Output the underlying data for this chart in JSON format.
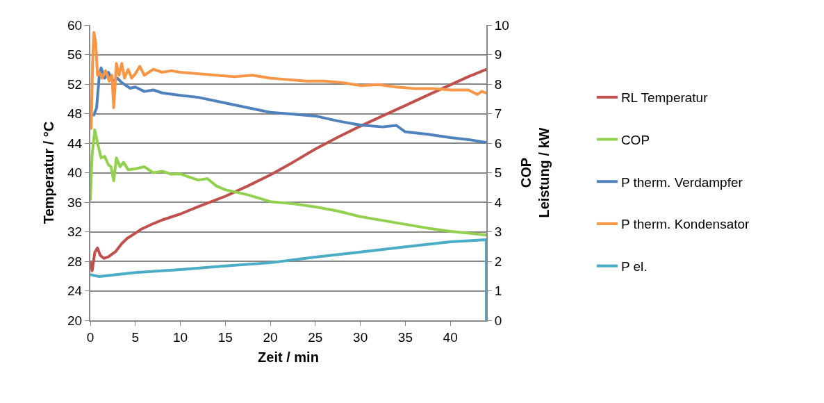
{
  "chart_data": {
    "type": "line",
    "xlabel": "Zeit / min",
    "ylabel": "Temperatur / °C",
    "y2label": "COP\nLeistung / kW",
    "xlim": [
      0,
      44
    ],
    "xticks": [
      0,
      5,
      10,
      15,
      20,
      25,
      30,
      35,
      40
    ],
    "ylim": [
      20,
      60
    ],
    "yticks": [
      20,
      24,
      28,
      32,
      36,
      40,
      44,
      48,
      52,
      56,
      60
    ],
    "y2lim": [
      0,
      10
    ],
    "y2ticks": [
      0,
      1,
      2,
      3,
      4,
      5,
      6,
      7,
      8,
      9,
      10
    ],
    "grid": "y",
    "legend": "right",
    "series": [
      {
        "name": "RL Temperatur",
        "color": "#c0504d",
        "x": [
          0,
          0.2,
          0.5,
          0.8,
          1.1,
          1.5,
          2,
          2.8,
          3.5,
          4.1,
          5,
          5.6,
          7,
          8,
          10,
          12,
          15,
          17.5,
          20,
          22.5,
          25,
          27.5,
          30,
          32.5,
          35,
          37.5,
          40,
          42,
          44
        ],
        "values": [
          27.9,
          26.7,
          29.2,
          29.8,
          28.8,
          28.4,
          28.6,
          29.3,
          30.4,
          31.1,
          31.8,
          32.3,
          33.1,
          33.6,
          34.4,
          35.4,
          36.8,
          38.2,
          39.7,
          41.4,
          43.2,
          44.8,
          46.3,
          47.7,
          49.1,
          50.5,
          51.9,
          53,
          54
        ]
      },
      {
        "name": "COP",
        "color": "#92d050",
        "axis": "y2",
        "x": [
          0,
          0.2,
          0.5,
          0.8,
          1.2,
          1.6,
          2,
          2.3,
          2.6,
          2.9,
          3.3,
          3.7,
          4.2,
          5,
          6,
          7,
          8,
          9,
          10,
          11,
          12,
          13,
          14,
          15,
          17.5,
          20,
          22.5,
          25,
          27.5,
          30,
          32.5,
          35,
          37.5,
          40,
          42,
          44
        ],
        "values": [
          4.09,
          5.6,
          6.45,
          6,
          5.5,
          5.55,
          5.27,
          5.2,
          4.73,
          5.5,
          5.2,
          5.35,
          5.1,
          5.13,
          5.2,
          5.0,
          5.05,
          4.95,
          4.96,
          4.85,
          4.75,
          4.8,
          4.55,
          4.42,
          4.25,
          4.02,
          3.95,
          3.84,
          3.7,
          3.51,
          3.38,
          3.25,
          3.12,
          3.01,
          2.95,
          2.89
        ]
      },
      {
        "name": "P therm. Verdampfer",
        "color": "#4f81bd",
        "axis": "y2",
        "x": [
          0.4,
          0.7,
          1,
          1.2,
          1.6,
          2,
          2.5,
          3,
          3.5,
          4.4,
          5,
          6,
          7,
          8,
          10,
          12,
          15,
          17.5,
          20,
          22.5,
          25,
          27.5,
          30,
          32.5,
          34,
          35,
          37.5,
          40,
          42,
          44
        ],
        "values": [
          6.95,
          7.2,
          8.3,
          8.55,
          8.2,
          8.4,
          8.1,
          8.2,
          8.05,
          7.86,
          7.9,
          7.75,
          7.8,
          7.7,
          7.62,
          7.55,
          7.36,
          7.2,
          7.04,
          6.98,
          6.92,
          6.75,
          6.61,
          6.55,
          6.6,
          6.38,
          6.3,
          6.19,
          6.12,
          6.02
        ]
      },
      {
        "name": "P therm. Kondensator",
        "color": "#f79646",
        "axis": "y2",
        "x": [
          0.1,
          0.25,
          0.4,
          0.6,
          0.8,
          1.0,
          1.3,
          1.7,
          2.1,
          2.4,
          2.6,
          2.9,
          3.2,
          3.5,
          3.8,
          4.2,
          4.6,
          5,
          5.5,
          6,
          7,
          8,
          9,
          10,
          12,
          14,
          16,
          18,
          20,
          22,
          24,
          26,
          28,
          30,
          32,
          34,
          36,
          38,
          40,
          42,
          43,
          43.5,
          44
        ],
        "values": [
          6.5,
          8.7,
          9.75,
          9.4,
          8.3,
          8.4,
          8.2,
          8.45,
          8.1,
          8.3,
          7.2,
          8.7,
          8.3,
          8.7,
          8.2,
          8.5,
          8.2,
          8.35,
          8.6,
          8.3,
          8.5,
          8.4,
          8.45,
          8.4,
          8.35,
          8.3,
          8.25,
          8.3,
          8.2,
          8.15,
          8.1,
          8.1,
          8.05,
          7.95,
          7.98,
          7.9,
          7.85,
          7.85,
          7.8,
          7.8,
          7.65,
          7.75,
          7.7
        ]
      },
      {
        "name": "P el.",
        "color": "#4bacc6",
        "axis": "y2",
        "x": [
          0,
          1,
          1.5,
          5,
          10,
          15,
          20,
          25,
          30,
          35,
          40,
          44,
          44
        ],
        "values": [
          1.55,
          1.48,
          1.5,
          1.62,
          1.72,
          1.84,
          1.95,
          2.14,
          2.31,
          2.49,
          2.66,
          2.73,
          0
        ]
      }
    ]
  }
}
